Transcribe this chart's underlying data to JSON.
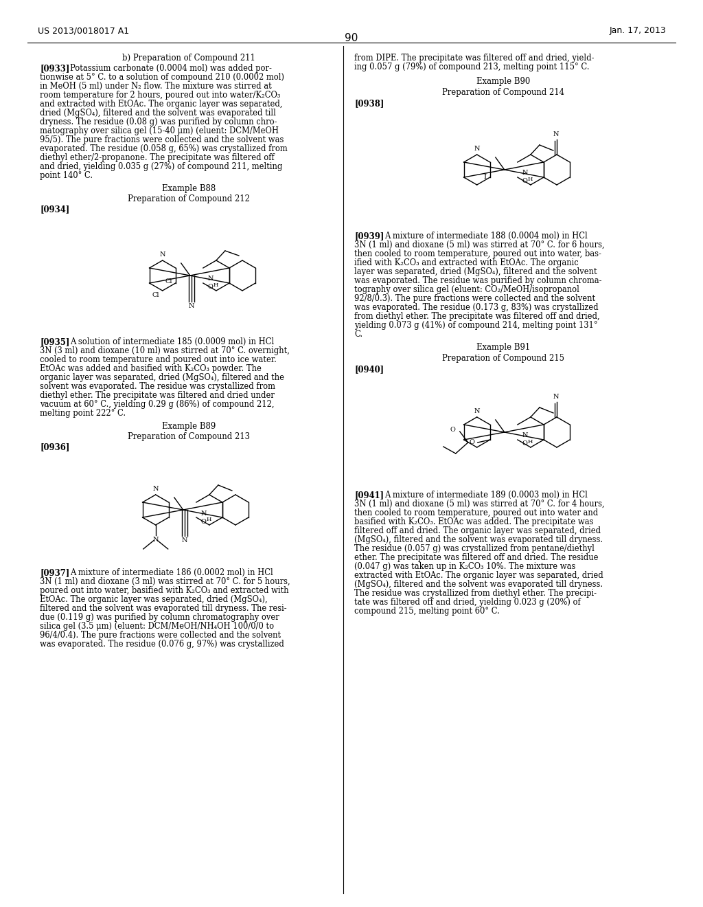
{
  "page_number": "90",
  "header_left": "US 2013/0018017 A1",
  "header_right": "Jan. 17, 2013",
  "background_color": "#ffffff",
  "text_color": "#000000",
  "font_size_body": 8.3,
  "font_size_header": 9.0
}
